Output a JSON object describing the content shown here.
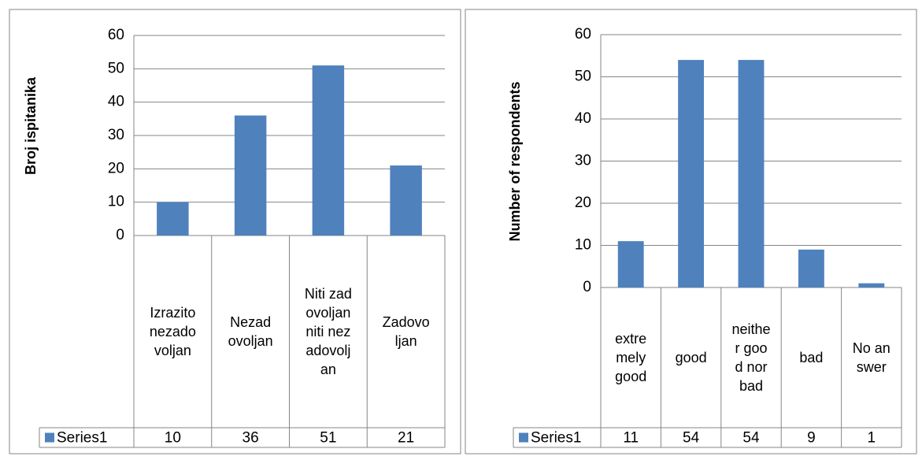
{
  "chart_data": [
    {
      "type": "bar",
      "ylabel": "Broj ispitanika",
      "categories": [
        "Izrazito nezadovoljan",
        "Nezadovoljan",
        "Niti zadovoljan niti nezadovoljan",
        "Zadovoljan"
      ],
      "series": [
        {
          "name": "Series1",
          "color": "#4f81bd",
          "values": [
            10,
            36,
            51,
            21
          ]
        }
      ],
      "ylim": [
        0,
        60
      ],
      "yticks": [
        0,
        10,
        20,
        30,
        40,
        50,
        60
      ],
      "grid": true
    },
    {
      "type": "bar",
      "ylabel": "Number of respondents",
      "categories": [
        "extremely good",
        "good",
        "neither good nor bad",
        "bad",
        "No answer"
      ],
      "series": [
        {
          "name": "Series1",
          "color": "#4f81bd",
          "values": [
            11,
            54,
            54,
            9,
            1
          ]
        }
      ],
      "ylim": [
        0,
        60
      ],
      "yticks": [
        0,
        10,
        20,
        30,
        40,
        50,
        60
      ],
      "grid": true
    }
  ]
}
